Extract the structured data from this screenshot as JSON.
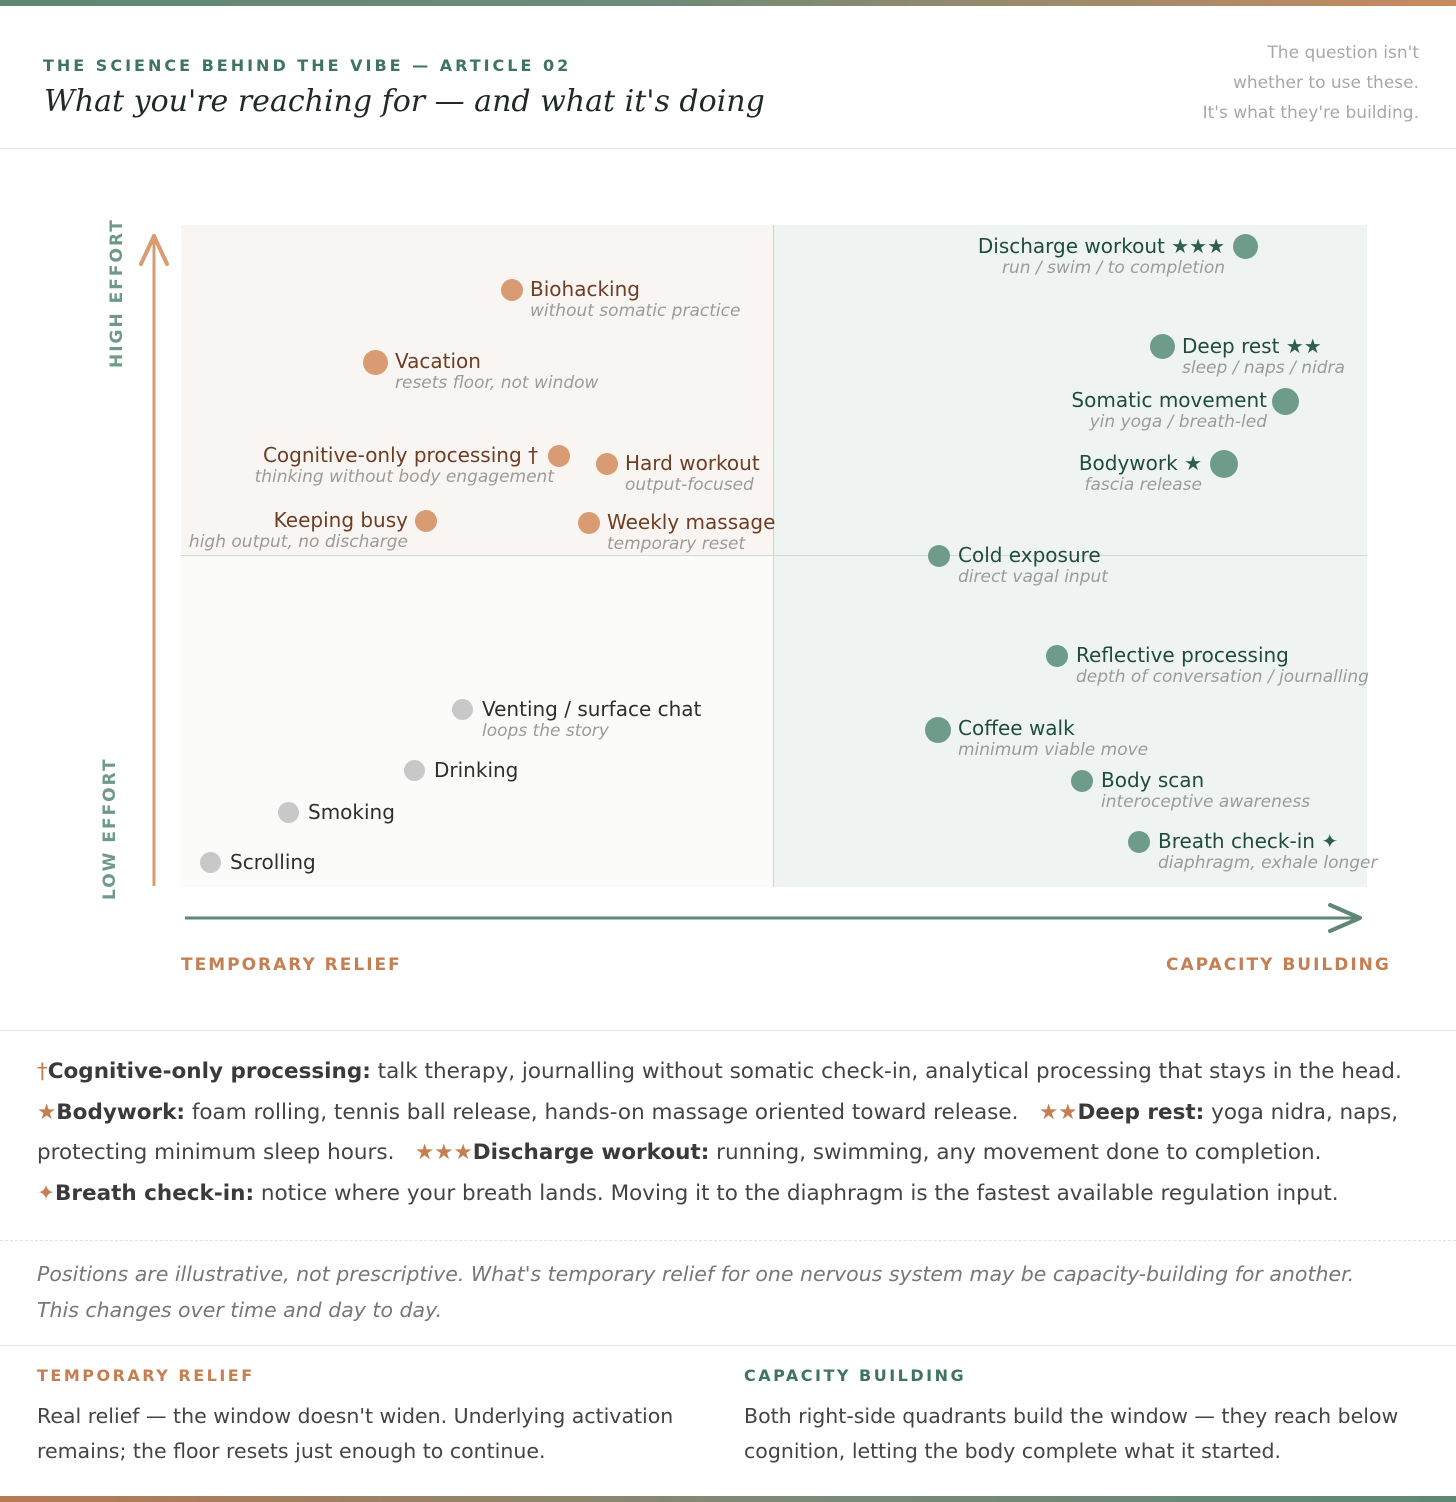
{
  "header": {
    "eyebrow": "THE SCIENCE BEHIND THE VIBE — ARTICLE 02",
    "title": "What you're reaching for — and what it's doing",
    "aside": [
      "The question isn't",
      "whether to use these.",
      "It's what they're building."
    ]
  },
  "axes": {
    "y_high": "HIGH EFFORT",
    "y_low": "LOW EFFORT",
    "x_left": "TEMPORARY RELIEF",
    "x_right": "CAPACITY BUILDING"
  },
  "points": {
    "biohacking": {
      "name": "Biohacking",
      "sub": "without somatic practice"
    },
    "vacation": {
      "name": "Vacation",
      "sub": "resets floor, not window"
    },
    "cognitive": {
      "name": "Cognitive-only processing †",
      "sub": "thinking without body engagement"
    },
    "hard_workout": {
      "name": "Hard workout",
      "sub": "output-focused"
    },
    "keeping_busy": {
      "name": "Keeping busy",
      "sub": "high output, no discharge"
    },
    "weekly_massage": {
      "name": "Weekly massage",
      "sub": "temporary reset"
    },
    "discharge_workout": {
      "name": "Discharge workout",
      "stars": "★★★",
      "sub": "run / swim / to completion"
    },
    "deep_rest": {
      "name": "Deep rest",
      "stars": "★★",
      "sub": "sleep / naps / nidra"
    },
    "somatic_movement": {
      "name": "Somatic movement",
      "sub": "yin yoga / breath-led"
    },
    "bodywork": {
      "name": "Bodywork",
      "stars": "★",
      "sub": "fascia release"
    },
    "cold_exposure": {
      "name": "Cold exposure",
      "sub": "direct vagal input"
    },
    "reflective": {
      "name": "Reflective processing",
      "sub": "depth of conversation / journalling"
    },
    "coffee_walk": {
      "name": "Coffee walk",
      "sub": "minimum viable move"
    },
    "body_scan": {
      "name": "Body scan",
      "sub": "interoceptive awareness"
    },
    "breath_checkin": {
      "name": "Breath check-in",
      "stars": "✦",
      "sub": "diaphragm, exhale longer"
    },
    "venting": {
      "name": "Venting / surface chat",
      "sub": "loops the story"
    },
    "drinking": {
      "name": "Drinking"
    },
    "smoking": {
      "name": "Smoking"
    },
    "scrolling": {
      "name": "Scrolling"
    }
  },
  "notes": {
    "n1_mark": "†",
    "n1_term": "Cognitive-only processing:",
    "n1_text": "talk therapy, journalling without somatic check-in, analytical processing that stays in the head.",
    "n2_mark": "★",
    "n2_term": "Bodywork:",
    "n2_text": "foam rolling, tennis ball release, hands-on massage oriented toward release.",
    "n3_mark": "★★",
    "n3_term": "Deep rest:",
    "n3_text": "yoga nidra, naps, protecting minimum sleep hours.",
    "n4_mark": "★★★",
    "n4_term": "Discharge workout:",
    "n4_text": "running, swimming, any movement done to completion.",
    "n5_mark": "✦",
    "n5_term": "Breath check-in:",
    "n5_text": "notice where your breath lands. Moving it to the diaphragm is the fastest available regulation input."
  },
  "disclaimer": "Positions are illustrative, not prescriptive. What's temporary relief for one nervous system may be capacity-building for another. This changes over time and day to day.",
  "columns": {
    "left": {
      "heading": "TEMPORARY RELIEF",
      "text": "Real relief — the window doesn't widen. Underlying activation remains; the floor resets just enough to continue."
    },
    "right": {
      "heading": "CAPACITY BUILDING",
      "text": "Both right-side quadrants build the window — they reach below cognition, letting the body complete what it started."
    }
  },
  "colors": {
    "orange": "#d99b72",
    "green": "#6f9c8a",
    "grey": "#c8c8c8",
    "accent_green": "#3f7461",
    "accent_orange": "#c47f52"
  }
}
